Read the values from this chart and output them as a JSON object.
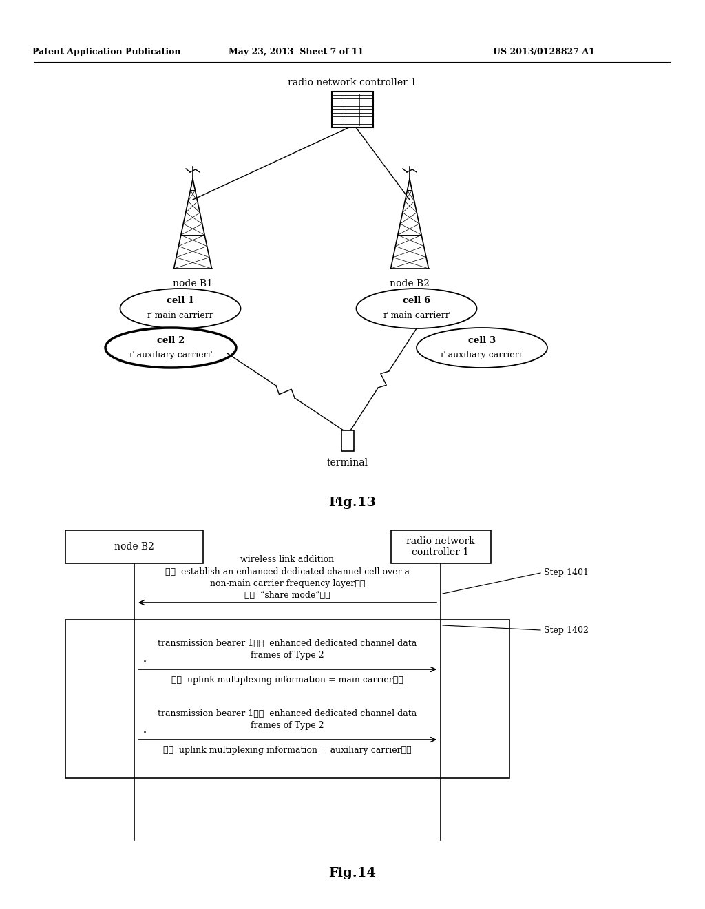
{
  "header_left": "Patent Application Publication",
  "header_mid": "May 23, 2013  Sheet 7 of 11",
  "header_right": "US 2013/0128827 A1",
  "fig13_label": "Fig.13",
  "fig14_label": "Fig.14",
  "rnc_label": "radio network controller 1",
  "nodeB1_label": "node B1",
  "nodeB2_label": "node B2",
  "terminal_label": "terminal",
  "cell1_line1": "cell 1",
  "cell1_line2": "ｉ？ main carrierｉ？",
  "cell2_line1": "cell 2",
  "cell2_line2": "ｉ？ auxiliary carrierｉ？",
  "cell6_line1": "cell 6",
  "cell6_line2": "ｉ？ main carrierｉ？",
  "cell3_line1": "cell 3",
  "cell3_line2": "ｉ？ auxiliary carrierｉ？",
  "seq_nodeB2": "node B2",
  "seq_rnc_line1": "radio network",
  "seq_rnc_line2": "controller 1",
  "step1401": "Step 1401",
  "step1402": "Step 1402",
  "msg1_line1": "wireless link addition",
  "msg1_line2": "ｉ？  establish an enhanced dedicated channel cell over a",
  "msg1_line3": "non-main carrier frequency layerｉ？",
  "msg1_line4": "ｉ？  “share mode”ｉ？",
  "msg2_line1": "transmission bearer 1ｉ？  enhanced dedicated channel data",
  "msg2_line2": "frames of Type 2",
  "msg2_line3": "ｉ？  uplink multiplexing information = main carrierｉ？",
  "msg3_line1": "transmission bearer 1ｉ？  enhanced dedicated channel data",
  "msg3_line2": "frames of Type 2",
  "msg3_line3": "ｉ？  uplink multiplexing information = auxiliary carrierｉ？",
  "bg_color": "#ffffff",
  "line_color": "#000000",
  "text_color": "#000000"
}
